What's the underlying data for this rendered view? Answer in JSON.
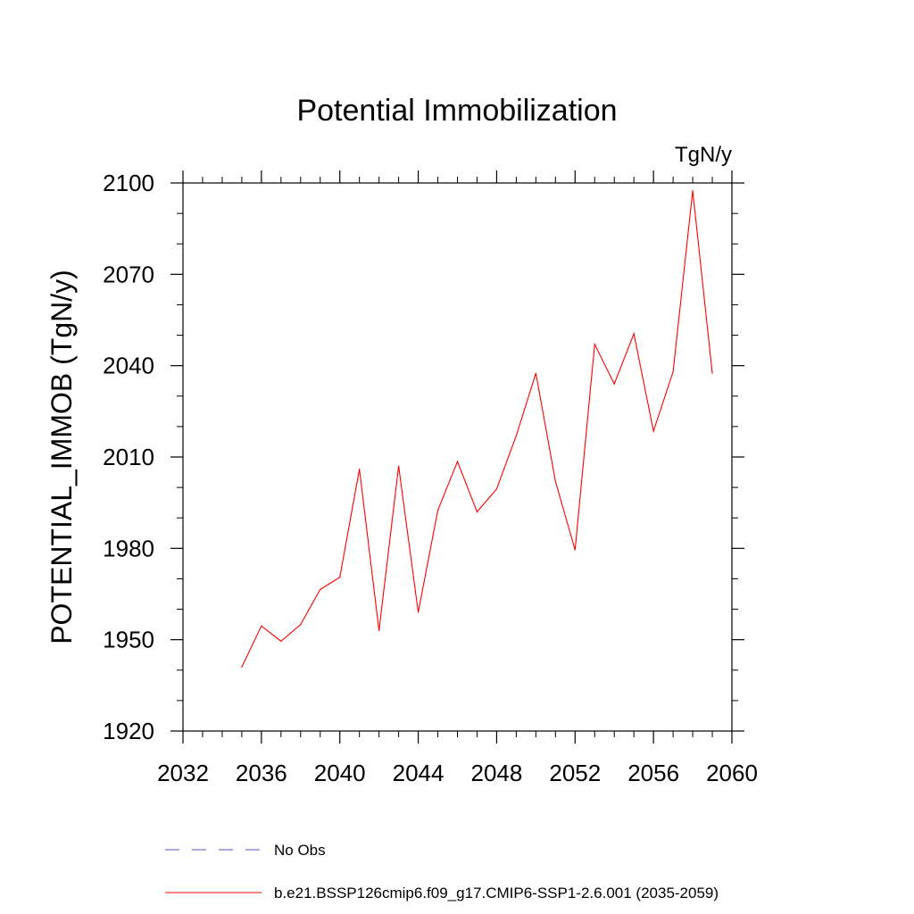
{
  "chart_data": {
    "type": "line",
    "title": "Potential Immobilization",
    "units_label": "TgN/y",
    "ylabel": "POTENTIAL_IMMOB  (TgN/y)",
    "xlabel": "",
    "xlim": [
      2032,
      2060
    ],
    "ylim": [
      1920,
      2100
    ],
    "x_ticks": [
      2032,
      2036,
      2040,
      2044,
      2048,
      2052,
      2056,
      2060
    ],
    "y_ticks": [
      1920,
      1950,
      1980,
      2010,
      2040,
      2070,
      2100
    ],
    "grid": false,
    "legend_position": "bottom",
    "series": [
      {
        "name": "b.e21.BSSP126cmip6.f09_g17.CMIP6-SSP1-2.6.001 (2035-2059)",
        "color": "#ff0000",
        "style": "solid",
        "x": [
          2035,
          2036,
          2037,
          2038,
          2039,
          2040,
          2041,
          2042,
          2043,
          2044,
          2045,
          2046,
          2047,
          2048,
          2049,
          2050,
          2051,
          2052,
          2053,
          2054,
          2055,
          2056,
          2057,
          2058,
          2059
        ],
        "y": [
          1941,
          1954.5,
          1949.5,
          1955,
          1966.5,
          1970.5,
          2006,
          1953,
          2007,
          1959,
          1992.5,
          2008.5,
          1992,
          1999.5,
          2017,
          2037.5,
          2002,
          1979.5,
          2047,
          2034,
          2050.5,
          2018.5,
          2038,
          2097.5,
          2037.5
        ]
      }
    ],
    "legend": [
      {
        "label": "No Obs",
        "color": "#5050c8",
        "style": "dashed"
      },
      {
        "label": "b.e21.BSSP126cmip6.f09_g17.CMIP6-SSP1-2.6.001 (2035-2059)",
        "color": "#ff0000",
        "style": "solid"
      }
    ]
  }
}
